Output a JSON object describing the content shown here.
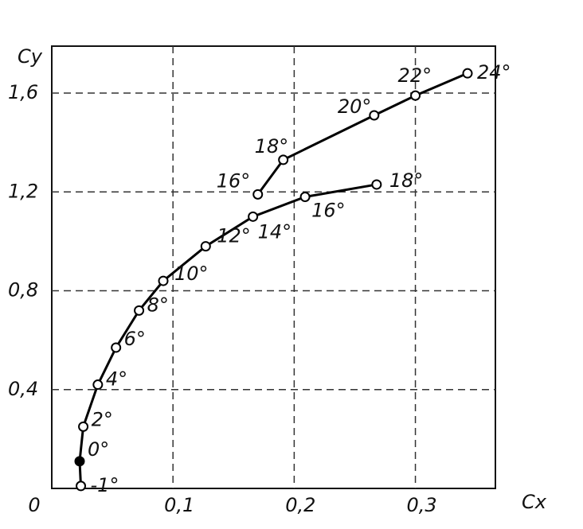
{
  "chart_data": {
    "type": "line",
    "x_label": "Cx",
    "y_label": "Cy",
    "xlim": [
      0,
      0.366
    ],
    "ylim": [
      0,
      1.79
    ],
    "xticks": [
      0,
      {
        "value": 0.1,
        "label": "0,1"
      },
      {
        "value": 0.2,
        "label": "0,2"
      },
      {
        "value": 0.3,
        "label": "0,3"
      }
    ],
    "yticks": [
      {
        "value": 0.4,
        "label": "0,4"
      },
      {
        "value": 0.8,
        "label": "0,8"
      },
      {
        "value": 1.2,
        "label": "1,2"
      },
      {
        "value": 1.6,
        "label": "1,6"
      }
    ],
    "grid": true,
    "color": "#000000",
    "series": [
      {
        "x": [
          0.024,
          0.023,
          0.026,
          0.038,
          0.053,
          0.072,
          0.092,
          0.127,
          0.166,
          0.209,
          0.268
        ],
        "values": [
          0.01,
          0.11,
          0.25,
          0.42,
          0.57,
          0.72,
          0.84,
          0.98,
          1.1,
          1.18,
          1.23
        ],
        "point_labels": [
          "-1°",
          "0°",
          "2°",
          "4°",
          "6°",
          "8°",
          "10°",
          "12°",
          "14°",
          "16°",
          "18°"
        ],
        "filled_points": [
          1
        ]
      },
      {
        "x": [
          0.17,
          0.191,
          0.266,
          0.3,
          0.343
        ],
        "values": [
          1.19,
          1.33,
          1.51,
          1.59,
          1.68
        ],
        "point_labels": [
          "16°",
          "18°",
          "20°",
          "22°",
          "24°"
        ],
        "filled_points": []
      }
    ]
  }
}
